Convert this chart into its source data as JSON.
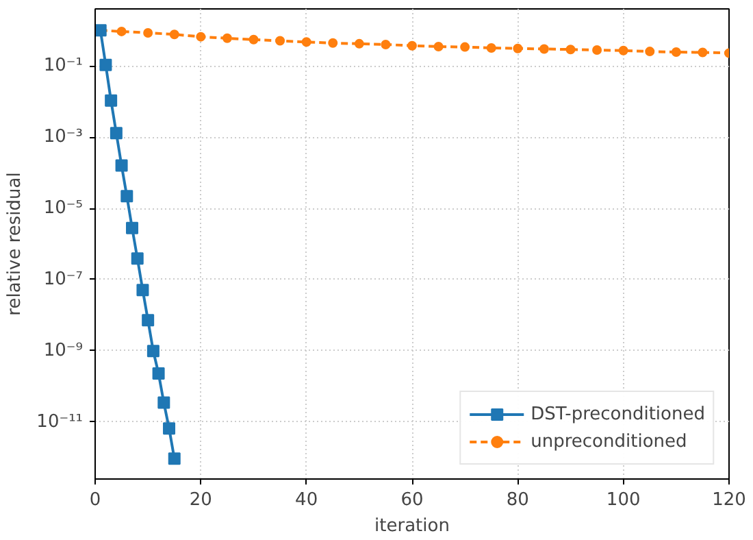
{
  "chart_data": {
    "type": "line",
    "xlabel": "iteration",
    "ylabel": "relative residual",
    "log": "y",
    "grid": true,
    "legend": "bottom right",
    "xlim": [
      0,
      120
    ],
    "xticks": [
      0,
      20,
      40,
      60,
      80,
      100,
      120
    ],
    "ylim": [
      2.5e-13,
      4
    ],
    "yticks": [
      {
        "value": 0.1,
        "label": "10⁻¹"
      },
      {
        "value": 0.001,
        "label": "10⁻³"
      },
      {
        "value": 1e-05,
        "label": "10⁻⁵"
      },
      {
        "value": 1e-07,
        "label": "10⁻⁷"
      },
      {
        "value": 1e-09,
        "label": "10⁻⁹"
      },
      {
        "value": 1e-11,
        "label": "10⁻¹¹"
      }
    ],
    "series": [
      {
        "name": "DST-preconditioned",
        "color": "#1f77b4",
        "marker": "square",
        "line_style": "solid",
        "x": [
          1,
          2,
          3,
          4,
          5,
          6,
          7,
          8,
          9,
          10,
          11,
          12,
          13,
          14,
          15
        ],
        "values": [
          1,
          0.107,
          0.0107,
          0.0013,
          0.00016,
          2.2e-05,
          2.8e-06,
          3.9e-07,
          5.1e-08,
          7.2e-09,
          9.8e-10,
          2.3e-10,
          3.5e-11,
          6.6e-12,
          9.3e-13
        ]
      },
      {
        "name": "unpreconditioned",
        "color": "#ff7f0e",
        "marker": "circle",
        "line_style": "dashed",
        "x": [
          1,
          5,
          10,
          15,
          20,
          25,
          30,
          35,
          40,
          45,
          50,
          55,
          60,
          65,
          70,
          75,
          80,
          85,
          90,
          95,
          100,
          105,
          110,
          115,
          120
        ],
        "values": [
          1.0,
          0.93,
          0.85,
          0.77,
          0.66,
          0.6,
          0.55,
          0.51,
          0.47,
          0.44,
          0.42,
          0.4,
          0.37,
          0.35,
          0.34,
          0.32,
          0.31,
          0.3,
          0.29,
          0.28,
          0.27,
          0.255,
          0.245,
          0.24,
          0.23
        ]
      }
    ]
  }
}
